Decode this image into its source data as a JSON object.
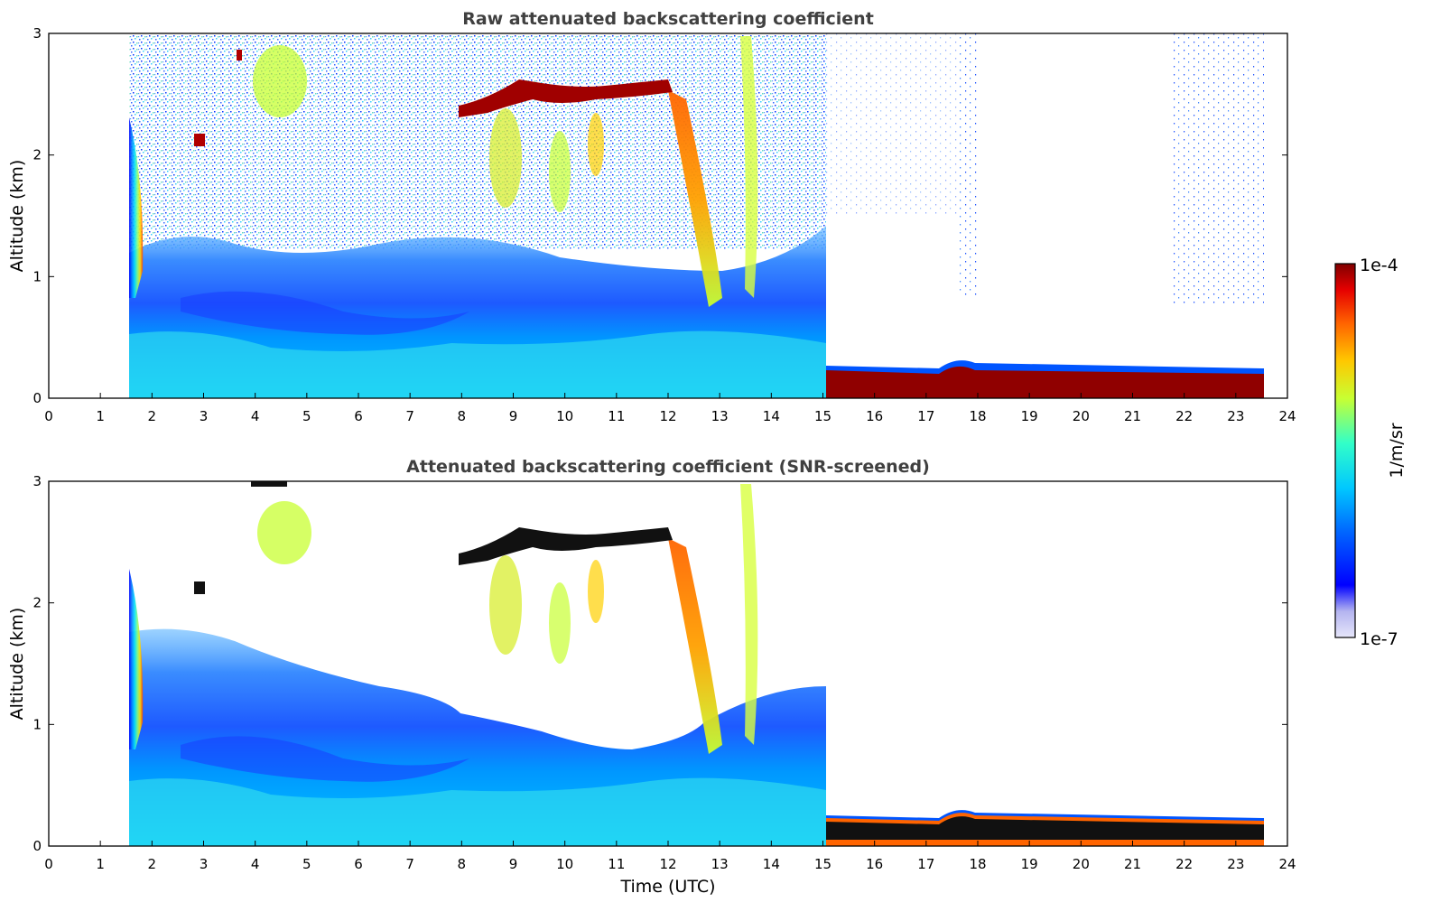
{
  "chart_data": [
    {
      "type": "heatmap",
      "title": "Raw attenuated backscattering coefficient",
      "xlabel": "",
      "ylabel": "Altitude (km)",
      "xlim": [
        0,
        24
      ],
      "ylim": [
        0,
        3
      ],
      "xticks": [
        "0",
        "1",
        "2",
        "3",
        "4",
        "5",
        "6",
        "7",
        "8",
        "9",
        "10",
        "11",
        "12",
        "13",
        "14",
        "15",
        "16",
        "17",
        "18",
        "19",
        "20",
        "21",
        "22",
        "23",
        "24"
      ],
      "yticks": [
        "0",
        "1",
        "2",
        "3"
      ],
      "grid": false,
      "data_coverage": {
        "start_utc": 1.55,
        "end_utc": 23.6
      },
      "features": [
        {
          "kind": "cloud_layer",
          "x": [
            7.95,
            12.05
          ],
          "y": [
            2.3,
            2.65
          ],
          "level": "max"
        },
        {
          "kind": "surface_layer",
          "x": [
            15.05,
            23.6
          ],
          "y": [
            0.0,
            0.25
          ],
          "level": "max"
        },
        {
          "kind": "aerosol_layer",
          "x": [
            1.55,
            15.05
          ],
          "y": [
            0.0,
            1.3
          ],
          "level": "low"
        },
        {
          "kind": "fallstreak",
          "x": [
            12.0,
            13.0
          ],
          "y": [
            0.7,
            2.6
          ],
          "level": "high"
        },
        {
          "kind": "noise_region",
          "x": [
            1.55,
            15.05
          ],
          "y": [
            1.3,
            3.0
          ],
          "level": "low"
        }
      ]
    },
    {
      "type": "heatmap",
      "title": "Attenuated backscattering coefficient (SNR-screened)",
      "xlabel": "Time (UTC)",
      "ylabel": "Altitude (km)",
      "xlim": [
        0,
        24
      ],
      "ylim": [
        0,
        3
      ],
      "xticks": [
        "0",
        "1",
        "2",
        "3",
        "4",
        "5",
        "6",
        "7",
        "8",
        "9",
        "10",
        "11",
        "12",
        "13",
        "14",
        "15",
        "16",
        "17",
        "18",
        "19",
        "20",
        "21",
        "22",
        "23",
        "24"
      ],
      "yticks": [
        "0",
        "1",
        "2",
        "3"
      ],
      "grid": false,
      "data_coverage": {
        "start_utc": 1.55,
        "end_utc": 23.6
      },
      "features": [
        {
          "kind": "cloud_layer",
          "x": [
            7.95,
            12.05
          ],
          "y": [
            2.3,
            2.65
          ],
          "level": "saturated"
        },
        {
          "kind": "surface_layer",
          "x": [
            15.05,
            23.6
          ],
          "y": [
            0.0,
            0.22
          ],
          "level": "saturated"
        },
        {
          "kind": "aerosol_layer",
          "x": [
            1.55,
            15.05
          ],
          "y": [
            0.0,
            1.3
          ],
          "level": "low"
        },
        {
          "kind": "fallstreak",
          "x": [
            12.0,
            13.0
          ],
          "y": [
            0.7,
            2.6
          ],
          "level": "high"
        }
      ]
    }
  ],
  "colorbar": {
    "max_label": "1e-4",
    "min_label": "1e-7",
    "label": "1/m/sr",
    "colormap": [
      "#e6e6fa",
      "#b4b4f0",
      "#0000ff",
      "#0064ff",
      "#00c8ff",
      "#32ffc8",
      "#c8ff32",
      "#ffc800",
      "#ff6400",
      "#e60000",
      "#800000"
    ]
  }
}
